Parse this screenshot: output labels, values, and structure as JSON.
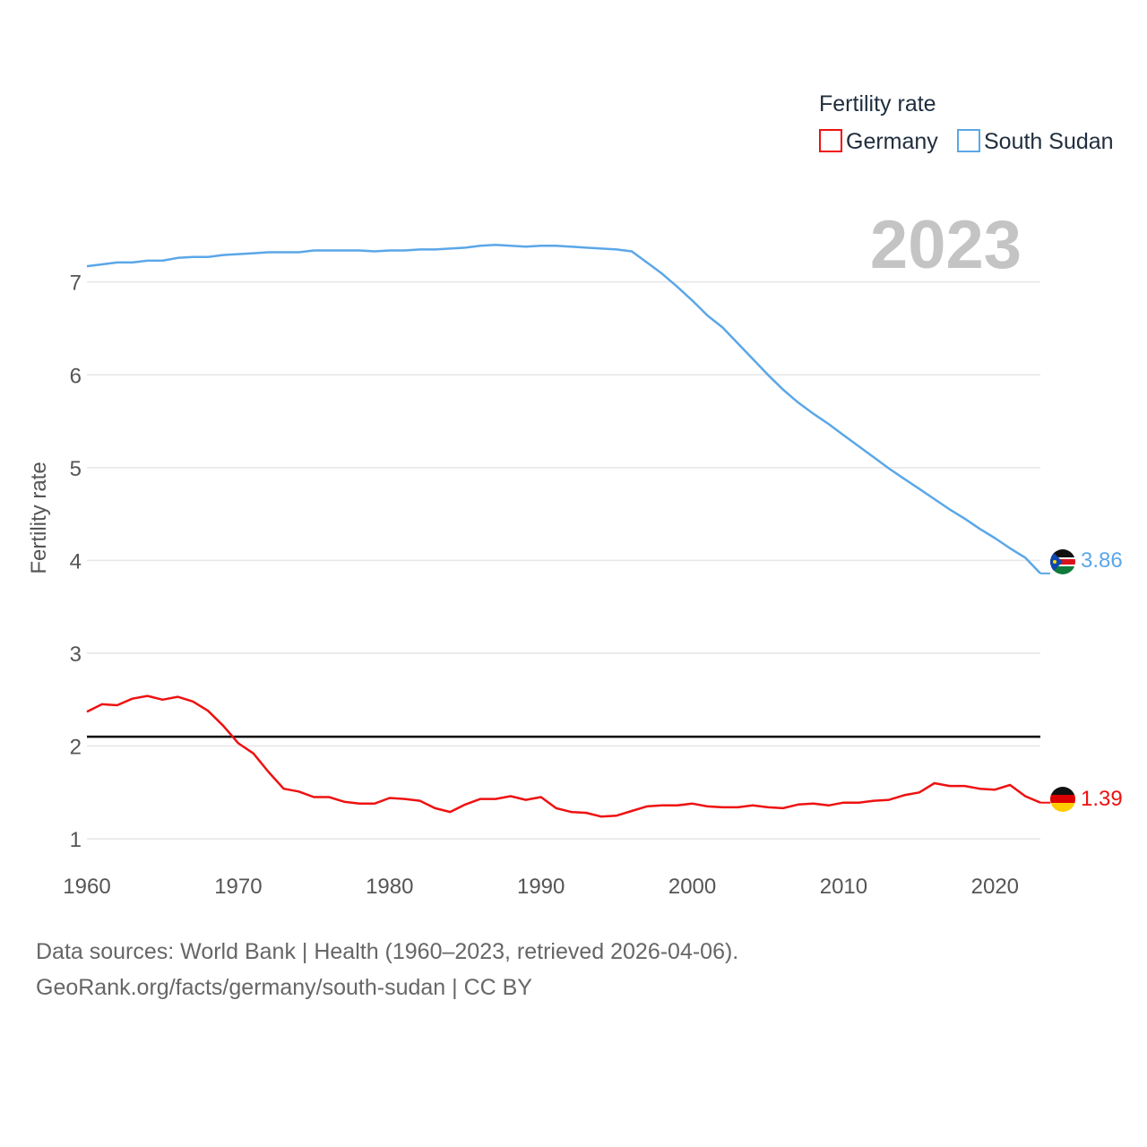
{
  "chart_data": {
    "type": "line",
    "title": "",
    "xlabel": "",
    "ylabel": "Fertility rate",
    "xlim": [
      1960,
      2023
    ],
    "ylim": [
      0.75,
      7.75
    ],
    "x_ticks": [
      1960,
      1970,
      1980,
      1990,
      2000,
      2010,
      2020
    ],
    "y_ticks": [
      1,
      2,
      3,
      4,
      5,
      6,
      7
    ],
    "legend_title": "Fertility rate",
    "legend_position": "top-right",
    "year_label": "2023",
    "reference_line": {
      "value": 2.1,
      "color": "#000000"
    },
    "x": [
      1960,
      1961,
      1962,
      1963,
      1964,
      1965,
      1966,
      1967,
      1968,
      1969,
      1970,
      1971,
      1972,
      1973,
      1974,
      1975,
      1976,
      1977,
      1978,
      1979,
      1980,
      1981,
      1982,
      1983,
      1984,
      1985,
      1986,
      1987,
      1988,
      1989,
      1990,
      1991,
      1992,
      1993,
      1994,
      1995,
      1996,
      1997,
      1998,
      1999,
      2000,
      2001,
      2002,
      2003,
      2004,
      2005,
      2006,
      2007,
      2008,
      2009,
      2010,
      2011,
      2012,
      2013,
      2014,
      2015,
      2016,
      2017,
      2018,
      2019,
      2020,
      2021,
      2022,
      2023
    ],
    "series": [
      {
        "name": "Germany",
        "color": "#ee1111",
        "end_label": "1.39",
        "flag": "germany-flag",
        "values": [
          2.37,
          2.45,
          2.44,
          2.51,
          2.54,
          2.5,
          2.53,
          2.48,
          2.38,
          2.22,
          2.03,
          1.92,
          1.72,
          1.54,
          1.51,
          1.45,
          1.45,
          1.4,
          1.38,
          1.38,
          1.44,
          1.43,
          1.41,
          1.33,
          1.29,
          1.37,
          1.43,
          1.43,
          1.46,
          1.42,
          1.45,
          1.33,
          1.29,
          1.28,
          1.24,
          1.25,
          1.3,
          1.35,
          1.36,
          1.36,
          1.38,
          1.35,
          1.34,
          1.34,
          1.36,
          1.34,
          1.33,
          1.37,
          1.38,
          1.36,
          1.39,
          1.39,
          1.41,
          1.42,
          1.47,
          1.5,
          1.6,
          1.57,
          1.57,
          1.54,
          1.53,
          1.58,
          1.46,
          1.39
        ]
      },
      {
        "name": "South Sudan",
        "color": "#5aa7e8",
        "end_label": "3.86",
        "flag": "south-sudan-flag",
        "values": [
          7.17,
          7.19,
          7.21,
          7.21,
          7.23,
          7.23,
          7.26,
          7.27,
          7.27,
          7.29,
          7.3,
          7.31,
          7.32,
          7.32,
          7.32,
          7.34,
          7.34,
          7.34,
          7.34,
          7.33,
          7.34,
          7.34,
          7.35,
          7.35,
          7.36,
          7.37,
          7.39,
          7.4,
          7.39,
          7.38,
          7.39,
          7.39,
          7.38,
          7.37,
          7.36,
          7.35,
          7.33,
          7.21,
          7.09,
          6.95,
          6.8,
          6.64,
          6.51,
          6.34,
          6.17,
          6.0,
          5.84,
          5.7,
          5.58,
          5.47,
          5.35,
          5.23,
          5.11,
          4.99,
          4.88,
          4.77,
          4.66,
          4.55,
          4.45,
          4.34,
          4.24,
          4.13,
          4.03,
          3.86
        ]
      }
    ]
  },
  "source": {
    "line1": "Data sources: World Bank | Health (1960–2023, retrieved 2026-04-06).",
    "line2": "GeoRank.org/facts/germany/south-sudan | CC BY"
  }
}
